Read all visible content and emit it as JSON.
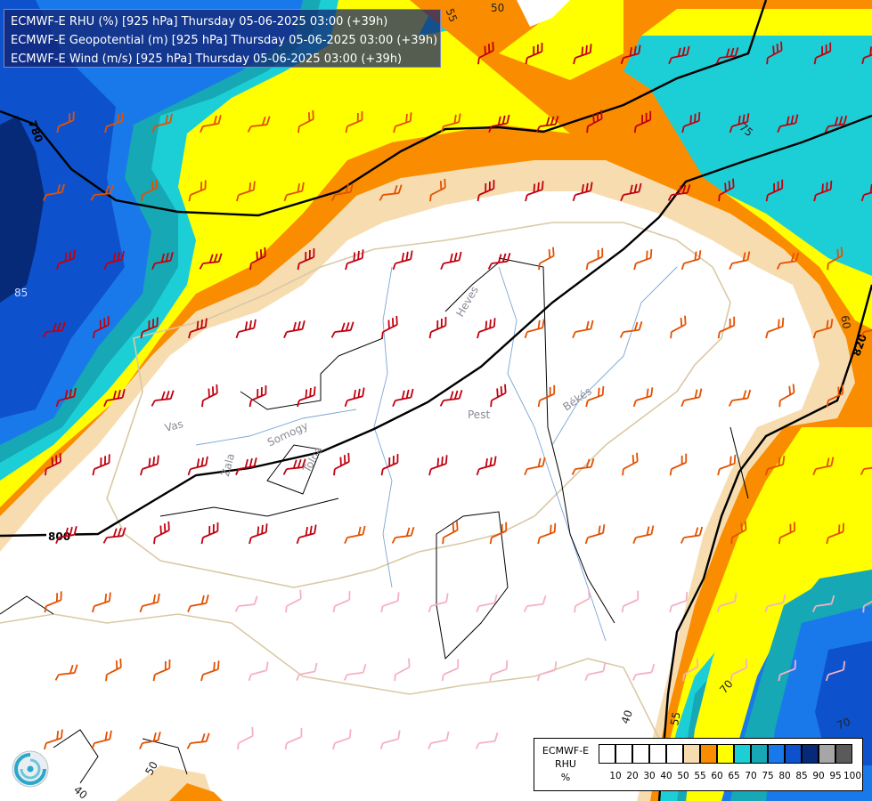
{
  "titles": [
    "ECMWF-E RHU (%) [925 hPa] Thursday 05-06-2025 03:00 (+39h)",
    "ECMWF-E Geopotential (m) [925 hPa] Thursday 05-06-2025 03:00 (+39h)",
    "ECMWF-E Wind (m/s) [925 hPa] Thursday 05-06-2025 03:00 (+39h)"
  ],
  "legend": {
    "label_lines": [
      "ECMWF-E",
      "RHU",
      "%"
    ],
    "colors": [
      "#ffffff",
      "#ffffff",
      "#ffffff",
      "#ffffff",
      "#ffffff",
      "#f7dcb0",
      "#fa8c00",
      "#ffff00",
      "#1ccfd6",
      "#16a8b4",
      "#1a79ea",
      "#0d52cc",
      "#072a78",
      "#a6a6a6",
      "#5a5a5a"
    ],
    "ticks": [
      "10",
      "20",
      "30",
      "40",
      "50",
      "55",
      "60",
      "65",
      "70",
      "75",
      "80",
      "85",
      "90",
      "95",
      "100"
    ]
  },
  "geopotential_labels": [
    "780",
    "800",
    "820"
  ],
  "rhu_labels": [
    "50",
    "55",
    "85",
    "75",
    "60",
    "40",
    "55",
    "70",
    "70",
    "50",
    "40"
  ],
  "places": [
    "Vas",
    "Somogy",
    "Tolna",
    "Heves",
    "Pest",
    "Békés",
    "Zala"
  ],
  "colors": {
    "rhu_95": "#a6a6a6",
    "rhu_85": "#072a78",
    "rhu_80": "#0d52cc",
    "rhu_75": "#1a79ea",
    "rhu_70": "#16a8b4",
    "rhu_65": "#1ccfd6",
    "rhu_60": "#ffff00",
    "rhu_55": "#fa8c00",
    "rhu_50": "#f7dcb0",
    "wind_strong": "#c00010",
    "wind_medium": "#e35000",
    "wind_weak": "#ff8a1a",
    "wind_calm": "#f5b0c4"
  }
}
